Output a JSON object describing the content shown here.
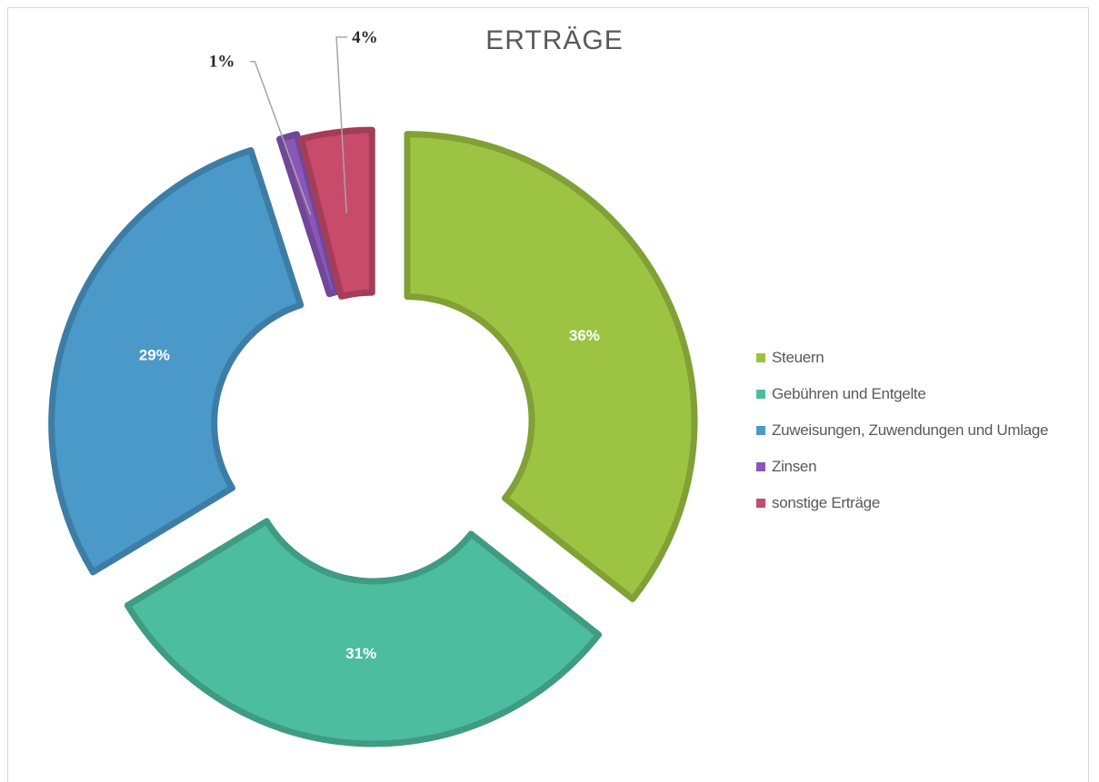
{
  "chart_data": {
    "type": "pie",
    "title": "ERTRÄGE",
    "legend_position": "right",
    "categories": [
      "Steuern",
      "Gebühren und Entgelte",
      "Zuweisungen, Zuwendungen und Umlage",
      "Zinsen",
      "sonstige Erträge"
    ],
    "values": [
      36,
      31,
      29,
      1,
      4
    ],
    "data_labels": [
      "36%",
      "31%",
      "29%",
      "1%",
      "4%"
    ],
    "colors": [
      "#9dc342",
      "#4dbd9f",
      "#4a99c9",
      "#8a56b8",
      "#c84b6b"
    ],
    "style": "exploded-doughnut"
  }
}
